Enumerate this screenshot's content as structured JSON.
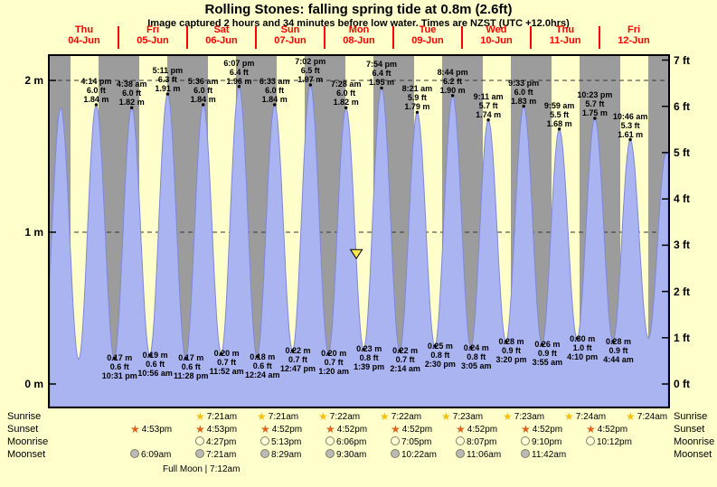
{
  "title": "Rolling Stones: falling spring tide at 0.8m (2.6ft)",
  "subtitle": "Image captured 2 hours and 34 minutes before low water. Times are NZST (UTC +12.0hrs)",
  "days": [
    {
      "name": "Thu",
      "date": "04-Jun"
    },
    {
      "name": "Fri",
      "date": "05-Jun"
    },
    {
      "name": "Sat",
      "date": "06-Jun"
    },
    {
      "name": "Sun",
      "date": "07-Jun"
    },
    {
      "name": "Mon",
      "date": "08-Jun"
    },
    {
      "name": "Tue",
      "date": "09-Jun"
    },
    {
      "name": "Wed",
      "date": "10-Jun"
    },
    {
      "name": "Thu",
      "date": "11-Jun"
    },
    {
      "name": "Fri",
      "date": "12-Jun"
    }
  ],
  "chart_data": {
    "type": "area",
    "x_range_days": 9,
    "x_unit": "hours from 00:00 on Thu 04-Jun (NZST)",
    "ylim_m": [
      -0.15,
      2.31
    ],
    "y_ticks_m": [
      "0 m",
      "1 m",
      "2 m"
    ],
    "y_ticks_ft": [
      "0 ft",
      "1 ft",
      "2 ft",
      "3 ft",
      "4 ft",
      "5 ft",
      "6 ft",
      "7 ft"
    ],
    "night_from_hour": 16.88,
    "night_to_hour": 7.35,
    "high_tides": [
      {
        "time": "4:14 pm",
        "ft": "6.0 ft",
        "m": "1.84 m",
        "t": 16.23,
        "h": 1.84
      },
      {
        "time": "4:38 am",
        "ft": "6.0 ft",
        "m": "1.82 m",
        "t": 28.63,
        "h": 1.82
      },
      {
        "time": "5:11 pm",
        "ft": "6.3 ft",
        "m": "1.91 m",
        "t": 41.18,
        "h": 1.91
      },
      {
        "time": "5:36 am",
        "ft": "6.0 ft",
        "m": "1.84 m",
        "t": 53.6,
        "h": 1.84
      },
      {
        "time": "6:07 pm",
        "ft": "6.4 ft",
        "m": "1.96 m",
        "t": 66.12,
        "h": 1.96
      },
      {
        "time": "6:33 am",
        "ft": "6.0 ft",
        "m": "1.84 m",
        "t": 78.55,
        "h": 1.84
      },
      {
        "time": "7:02 pm",
        "ft": "6.5 ft",
        "m": "1.97 m",
        "t": 91.03,
        "h": 1.97
      },
      {
        "time": "7:28 am",
        "ft": "6.0 ft",
        "m": "1.82 m",
        "t": 103.47,
        "h": 1.82
      },
      {
        "time": "7:54 pm",
        "ft": "6.4 ft",
        "m": "1.95 m",
        "t": 115.9,
        "h": 1.95
      },
      {
        "time": "8:21 am",
        "ft": "5.9 ft",
        "m": "1.79 m",
        "t": 128.35,
        "h": 1.79
      },
      {
        "time": "8:44 pm",
        "ft": "6.2 ft",
        "m": "1.90 m",
        "t": 140.73,
        "h": 1.9
      },
      {
        "time": "9:11 am",
        "ft": "5.7 ft",
        "m": "1.74 m",
        "t": 153.18,
        "h": 1.74
      },
      {
        "time": "9:33 pm",
        "ft": "6.0 ft",
        "m": "1.83 m",
        "t": 165.55,
        "h": 1.83
      },
      {
        "time": "9:59 am",
        "ft": "5.5 ft",
        "m": "1.68 m",
        "t": 177.98,
        "h": 1.68
      },
      {
        "time": "10:23 pm",
        "ft": "5.7 ft",
        "m": "1.75 m",
        "t": 190.38,
        "h": 1.75
      },
      {
        "time": "10:46 am",
        "ft": "5.3 ft",
        "m": "1.61 m",
        "t": 202.77,
        "h": 1.61
      }
    ],
    "low_tides": [
      {
        "m": "0.17 m",
        "ft": "0.6 ft",
        "time": "10:31 pm",
        "t": 22.52,
        "h": 0.17
      },
      {
        "m": "0.19 m",
        "ft": "0.6 ft",
        "time": "10:56 am",
        "t": 34.93,
        "h": 0.19
      },
      {
        "m": "0.17 m",
        "ft": "0.6 ft",
        "time": "11:28 pm",
        "t": 47.47,
        "h": 0.17
      },
      {
        "m": "0.20 m",
        "ft": "0.7 ft",
        "time": "11:52 am",
        "t": 59.87,
        "h": 0.2
      },
      {
        "m": "0.18 m",
        "ft": "0.6 ft",
        "time": "12:24 am",
        "t": 72.4,
        "h": 0.18
      },
      {
        "m": "0.22 m",
        "ft": "0.7 ft",
        "time": "12:47 pm",
        "t": 84.78,
        "h": 0.22
      },
      {
        "m": "0.20 m",
        "ft": "0.7 ft",
        "time": "1:20 am",
        "t": 97.33,
        "h": 0.2
      },
      {
        "m": "0.23 m",
        "ft": "0.8 ft",
        "time": "1:39 pm",
        "t": 109.65,
        "h": 0.23
      },
      {
        "m": "0.22 m",
        "ft": "0.7 ft",
        "time": "2:14 am",
        "t": 122.23,
        "h": 0.22
      },
      {
        "m": "0.25 m",
        "ft": "0.8 ft",
        "time": "2:30 pm",
        "t": 134.5,
        "h": 0.25
      },
      {
        "m": "0.24 m",
        "ft": "0.8 ft",
        "time": "3:05 am",
        "t": 147.08,
        "h": 0.24
      },
      {
        "m": "0.28 m",
        "ft": "0.9 ft",
        "time": "3:20 pm",
        "t": 159.33,
        "h": 0.28
      },
      {
        "m": "0.26 m",
        "ft": "0.9 ft",
        "time": "3:55 am",
        "t": 171.92,
        "h": 0.26
      },
      {
        "m": "0.30 m",
        "ft": "1.0 ft",
        "time": "4:10 pm",
        "t": 184.17,
        "h": 0.3
      },
      {
        "m": "0.28 m",
        "ft": "0.9 ft",
        "time": "4:44 am",
        "t": 196.73,
        "h": 0.28
      }
    ],
    "curve_anchors": [
      [
        -2.4,
        0.16
      ],
      [
        3.83,
        1.82
      ],
      [
        10.1,
        0.16
      ],
      [
        209.1,
        0.3
      ],
      [
        215.3,
        1.52
      ]
    ],
    "capture_marker": {
      "t": 107.08,
      "h": 0.82
    }
  },
  "astro": {
    "row_labels": [
      "Sunrise",
      "Sunset",
      "Moonrise",
      "Moonset"
    ],
    "sunrise_times": [
      "7:21am",
      "7:21am",
      "7:22am",
      "7:22am",
      "7:23am",
      "7:23am",
      "7:24am",
      "7:24am"
    ],
    "sunset_times": [
      "4:53pm",
      "4:53pm",
      "4:52pm",
      "4:52pm",
      "4:52pm",
      "4:52pm",
      "4:52pm",
      "4:52pm"
    ],
    "moonrise_times": [
      "4:27pm",
      "5:13pm",
      "6:06pm",
      "7:05pm",
      "8:07pm",
      "9:10pm",
      "10:12pm"
    ],
    "moonset_times": [
      "6:09am",
      "7:21am",
      "8:29am",
      "9:30am",
      "10:22am",
      "11:06am",
      "11:42am"
    ],
    "full_moon_label": "Full Moon | 7:12am"
  },
  "colors": {
    "background": "#ffffcc",
    "night_band": "#9c9c9c",
    "tide_fill": "#aab4f0",
    "tide_stroke": "#7e88d8",
    "day_label": "#ff0000",
    "sunrise_star": "#f2c010",
    "sunset_star": "#e2611c",
    "moonrise_fill": "#ffffd9",
    "moonset_fill": "#b9b9b9"
  }
}
